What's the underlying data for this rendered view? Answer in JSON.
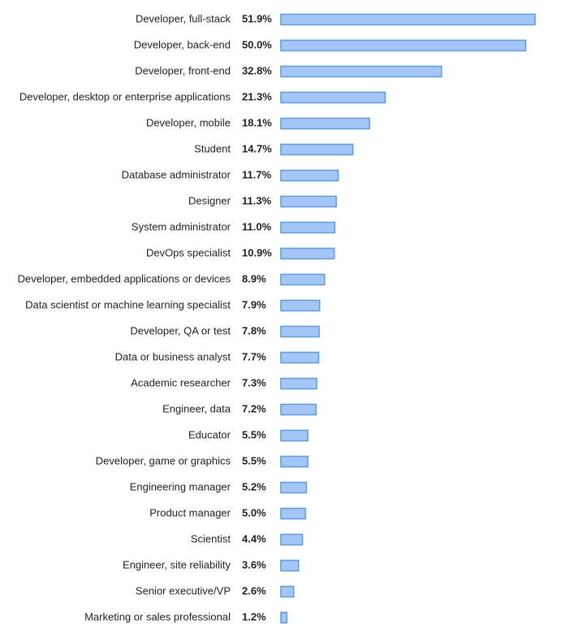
{
  "chart_data": {
    "type": "bar",
    "orientation": "horizontal",
    "categories": [
      "Developer, full-stack",
      "Developer, back-end",
      "Developer, front-end",
      "Developer, desktop or enterprise applications",
      "Developer, mobile",
      "Student",
      "Database administrator",
      "Designer",
      "System administrator",
      "DevOps specialist",
      "Developer, embedded applications or devices",
      "Data scientist or machine learning specialist",
      "Developer, QA or test",
      "Data or business analyst",
      "Academic researcher",
      "Engineer, data",
      "Educator",
      "Developer, game or graphics",
      "Engineering manager",
      "Product manager",
      "Scientist",
      "Engineer, site reliability",
      "Senior executive/VP",
      "Marketing or sales professional"
    ],
    "values": [
      51.9,
      50.0,
      32.8,
      21.3,
      18.1,
      14.7,
      11.7,
      11.3,
      11.0,
      10.9,
      8.9,
      7.9,
      7.8,
      7.7,
      7.3,
      7.2,
      5.5,
      5.5,
      5.2,
      5.0,
      4.4,
      3.6,
      2.6,
      1.2
    ],
    "value_labels": [
      "51.9%",
      "50.0%",
      "32.8%",
      "21.3%",
      "18.1%",
      "14.7%",
      "11.7%",
      "11.3%",
      "11.0%",
      "10.9%",
      "8.9%",
      "7.9%",
      "7.8%",
      "7.7%",
      "7.3%",
      "7.2%",
      "5.5%",
      "5.5%",
      "5.2%",
      "5.0%",
      "4.4%",
      "3.6%",
      "2.6%",
      "1.2%"
    ],
    "color": "#a3c8f8",
    "edgecolor": "#5b9bec"
  }
}
